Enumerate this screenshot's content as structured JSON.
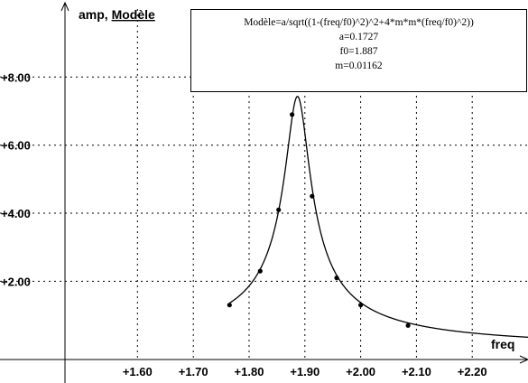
{
  "chart_data": {
    "type": "scatter",
    "x_variable": "freq",
    "y_labels": [
      "amp",
      "Modèle"
    ],
    "ylabel_separator": ", ",
    "x_ticks": [
      "+1.60",
      "+1.70",
      "+1.80",
      "+1.90",
      "+2.00",
      "+2.10",
      "+2.20"
    ],
    "y_ticks": [
      "+2.00",
      "+4.00",
      "+6.00",
      "+8.00"
    ],
    "xlim": [
      1.47,
      2.3
    ],
    "ylim": [
      -0.3,
      10.0
    ],
    "grid": true,
    "model": {
      "formula": "Modèle=a/sqrt((1-(freq/f0)^2)^2+4*m*m*(freq/f0)^2))",
      "params": [
        {
          "label": "a=0.1727",
          "value": 0.1727
        },
        {
          "label": "f0=1.887",
          "value": 1.887
        },
        {
          "label": "m=0.01162",
          "value": 0.01162
        }
      ],
      "x_range": [
        1.765,
        2.3
      ]
    },
    "series": [
      {
        "name": "amp",
        "x": [
          1.765,
          1.82,
          1.853,
          1.877,
          1.913,
          1.957,
          2.0,
          2.085
        ],
        "y": [
          1.3,
          2.3,
          4.1,
          6.9,
          4.5,
          2.1,
          1.3,
          0.7
        ]
      }
    ]
  }
}
